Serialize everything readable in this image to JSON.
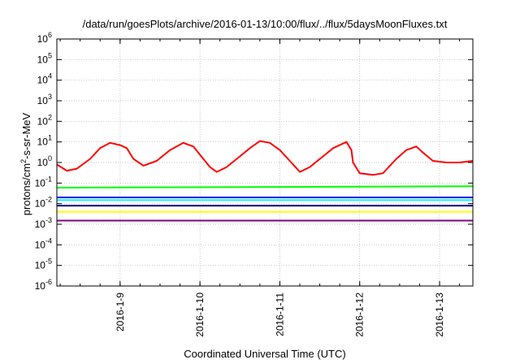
{
  "chart_data": {
    "type": "line",
    "title": "/data/run/goesPlots/archive/2016-01-13/10:00/flux/../flux/5daysMoonFluxes.txt",
    "xlabel": "Coordinated Universal Time (UTC)",
    "ylabel": {
      "prefix": "protons/cm",
      "sup": "2",
      "suffix": "-s-sr-MeV"
    },
    "y_scale": "log",
    "ylim": [
      1e-06,
      1000000.0
    ],
    "y_ticks": [
      {
        "base": "10",
        "exp": "-6",
        "value": 1e-06
      },
      {
        "base": "10",
        "exp": "-5",
        "value": 1e-05
      },
      {
        "base": "10",
        "exp": "-4",
        "value": 0.0001
      },
      {
        "base": "10",
        "exp": "-3",
        "value": 0.001
      },
      {
        "base": "10",
        "exp": "-2",
        "value": 0.01
      },
      {
        "base": "10",
        "exp": "-1",
        "value": 0.1
      },
      {
        "base": "10",
        "exp": "0",
        "value": 1
      },
      {
        "base": "10",
        "exp": "1",
        "value": 10
      },
      {
        "base": "10",
        "exp": "2",
        "value": 100
      },
      {
        "base": "10",
        "exp": "3",
        "value": 1000
      },
      {
        "base": "10",
        "exp": "4",
        "value": 10000
      },
      {
        "base": "10",
        "exp": "5",
        "value": 100000
      },
      {
        "base": "10",
        "exp": "6",
        "value": 1000000
      }
    ],
    "xlim": [
      "2016-01-08T05:00",
      "2016-01-13T10:00"
    ],
    "x_ticks": [
      {
        "label": "2016-1-9",
        "value": "2016-01-09T00:00"
      },
      {
        "label": "2016-1-10",
        "value": "2016-01-10T00:00"
      },
      {
        "label": "2016-1-11",
        "value": "2016-01-11T00:00"
      },
      {
        "label": "2016-1-12",
        "value": "2016-01-12T00:00"
      },
      {
        "label": "2016-1-13",
        "value": "2016-01-13T00:00"
      }
    ],
    "grid": true,
    "series": [
      {
        "color": "#ff0000",
        "values": [
          [
            "2016-01-08T05:00",
            0.8
          ],
          [
            "2016-01-08T08:00",
            0.4
          ],
          [
            "2016-01-08T11:00",
            0.5
          ],
          [
            "2016-01-08T15:00",
            1.5
          ],
          [
            "2016-01-08T18:00",
            5
          ],
          [
            "2016-01-08T21:00",
            9
          ],
          [
            "2016-01-09T00:00",
            7
          ],
          [
            "2016-01-09T02:00",
            5
          ],
          [
            "2016-01-09T04:00",
            1.5
          ],
          [
            "2016-01-09T07:00",
            0.7
          ],
          [
            "2016-01-09T11:00",
            1.2
          ],
          [
            "2016-01-09T15:00",
            4
          ],
          [
            "2016-01-09T19:00",
            9
          ],
          [
            "2016-01-09T22:00",
            6
          ],
          [
            "2016-01-10T01:00",
            1.5
          ],
          [
            "2016-01-10T03:00",
            0.6
          ],
          [
            "2016-01-10T05:00",
            0.35
          ],
          [
            "2016-01-10T08:00",
            0.6
          ],
          [
            "2016-01-10T12:00",
            2
          ],
          [
            "2016-01-10T15:00",
            5
          ],
          [
            "2016-01-10T18:00",
            11
          ],
          [
            "2016-01-10T21:00",
            9
          ],
          [
            "2016-01-11T00:00",
            4
          ],
          [
            "2016-01-11T03:00",
            1.2
          ],
          [
            "2016-01-11T06:00",
            0.35
          ],
          [
            "2016-01-11T09:00",
            0.6
          ],
          [
            "2016-01-11T13:00",
            2
          ],
          [
            "2016-01-11T16:00",
            5
          ],
          [
            "2016-01-11T20:00",
            10
          ],
          [
            "2016-01-11T21:30",
            4
          ],
          [
            "2016-01-11T22:00",
            1
          ],
          [
            "2016-01-12T00:00",
            0.3
          ],
          [
            "2016-01-12T04:00",
            0.25
          ],
          [
            "2016-01-12T07:00",
            0.3
          ],
          [
            "2016-01-12T11:00",
            1.5
          ],
          [
            "2016-01-12T14:00",
            4
          ],
          [
            "2016-01-12T17:00",
            6
          ],
          [
            "2016-01-12T19:00",
            3
          ],
          [
            "2016-01-12T22:00",
            1.2
          ],
          [
            "2016-01-13T02:00",
            1
          ],
          [
            "2016-01-13T06:00",
            1
          ],
          [
            "2016-01-13T10:00",
            1.2
          ]
        ]
      },
      {
        "color": "#00ff00",
        "values": [
          [
            "2016-01-08T05:00",
            0.06
          ],
          [
            "2016-01-13T10:00",
            0.07
          ]
        ]
      },
      {
        "color": "#00ffff",
        "values": [
          [
            "2016-01-08T05:00",
            0.015
          ],
          [
            "2016-01-13T10:00",
            0.015
          ]
        ]
      },
      {
        "color": "#0000ff",
        "values": [
          [
            "2016-01-08T05:00",
            0.02
          ],
          [
            "2016-01-13T10:00",
            0.02
          ]
        ]
      },
      {
        "color": "#000080",
        "values": [
          [
            "2016-01-08T05:00",
            0.008
          ],
          [
            "2016-01-13T10:00",
            0.008
          ]
        ]
      },
      {
        "color": "#ffff00",
        "values": [
          [
            "2016-01-08T05:00",
            0.004
          ],
          [
            "2016-01-13T10:00",
            0.004
          ]
        ]
      },
      {
        "color": "#800080",
        "values": [
          [
            "2016-01-08T05:00",
            0.0015
          ],
          [
            "2016-01-13T10:00",
            0.0015
          ]
        ]
      }
    ]
  }
}
